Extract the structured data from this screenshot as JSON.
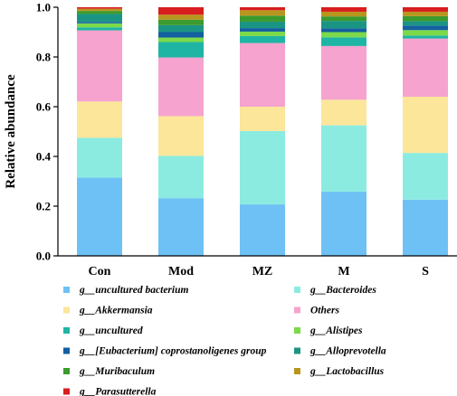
{
  "chart_data": {
    "type": "bar",
    "stacked": true,
    "title": "",
    "xlabel": "",
    "ylabel": "Relative abundance",
    "ylim": [
      0,
      1.0
    ],
    "yticks": [
      "0.0",
      "0.2",
      "0.4",
      "0.6",
      "0.8",
      "1.0"
    ],
    "grid": false,
    "legend_position": "bottom",
    "categories": [
      "Con",
      "Mod",
      "MZ",
      "M",
      "S"
    ],
    "series": [
      {
        "name": "g__uncultured bacterium",
        "color": "#6EC1F4",
        "values": [
          0.315,
          0.232,
          0.207,
          0.258,
          0.226
        ]
      },
      {
        "name": "g__Bacteroides",
        "color": "#8CEBE0",
        "values": [
          0.16,
          0.17,
          0.295,
          0.267,
          0.188
        ]
      },
      {
        "name": "g__Akkermansia",
        "color": "#FBE69A",
        "values": [
          0.146,
          0.16,
          0.098,
          0.103,
          0.226
        ]
      },
      {
        "name": "Others",
        "color": "#F6A3CF",
        "values": [
          0.286,
          0.236,
          0.256,
          0.216,
          0.234
        ]
      },
      {
        "name": "g__uncultured",
        "color": "#1FB5A4",
        "values": [
          0.012,
          0.062,
          0.028,
          0.035,
          0.012
        ]
      },
      {
        "name": "g__Alistipes",
        "color": "#7BD94A",
        "values": [
          0.016,
          0.018,
          0.018,
          0.021,
          0.022
        ]
      },
      {
        "name": "g__[Eubacterium] coprostanoligenes group",
        "color": "#135FA0",
        "values": [
          0.006,
          0.022,
          0.014,
          0.015,
          0.018
        ]
      },
      {
        "name": "g__Alloprevotella",
        "color": "#1B9583",
        "values": [
          0.032,
          0.028,
          0.026,
          0.03,
          0.018
        ]
      },
      {
        "name": "g__Muribaculum",
        "color": "#3C9A2E",
        "values": [
          0.012,
          0.022,
          0.024,
          0.018,
          0.02
        ]
      },
      {
        "name": "g__Lactobacillus",
        "color": "#B8961E",
        "values": [
          0.009,
          0.02,
          0.022,
          0.019,
          0.018
        ]
      },
      {
        "name": "g__Parasutterella",
        "color": "#D81E1E",
        "values": [
          0.006,
          0.03,
          0.012,
          0.018,
          0.018
        ]
      }
    ]
  }
}
